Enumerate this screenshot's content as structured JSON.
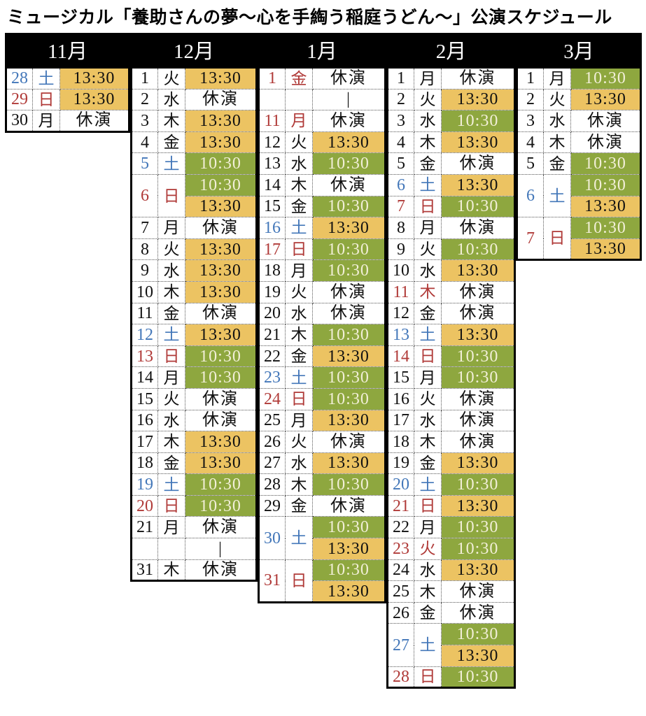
{
  "title": "ミュージカル「養助さんの夢〜心を手綯う稲庭うどん〜」公演スケジュール",
  "colors": {
    "morning_bg": "#8EA73F",
    "afternoon_bg": "#ECC362",
    "morning_text": "#F2EFD8",
    "saturday_text": "#4377B9",
    "sunday_holiday_text": "#B03A38",
    "header_bg": "#000000"
  },
  "labels": {
    "no_show": "休演",
    "continuation_mark": "|",
    "morning_time": "10:30",
    "afternoon_time": "13:30"
  },
  "months": [
    {
      "name": "11月",
      "rows": [
        {
          "date": "28",
          "day": "土",
          "type": "saturday",
          "shows": [
            {
              "time": "13:30",
              "kind": "afternoon"
            }
          ]
        },
        {
          "date": "29",
          "day": "日",
          "type": "sunday",
          "shows": [
            {
              "time": "13:30",
              "kind": "afternoon"
            }
          ]
        },
        {
          "date": "30",
          "day": "月",
          "type": "weekday",
          "shows": [
            {
              "time": "休演",
              "kind": "off"
            }
          ]
        }
      ]
    },
    {
      "name": "12月",
      "rows": [
        {
          "date": "1",
          "day": "火",
          "type": "weekday",
          "shows": [
            {
              "time": "13:30",
              "kind": "afternoon"
            }
          ]
        },
        {
          "date": "2",
          "day": "水",
          "type": "weekday",
          "shows": [
            {
              "time": "休演",
              "kind": "off"
            }
          ]
        },
        {
          "date": "3",
          "day": "木",
          "type": "weekday",
          "shows": [
            {
              "time": "13:30",
              "kind": "afternoon"
            }
          ]
        },
        {
          "date": "4",
          "day": "金",
          "type": "weekday",
          "shows": [
            {
              "time": "13:30",
              "kind": "afternoon"
            }
          ]
        },
        {
          "date": "5",
          "day": "土",
          "type": "saturday",
          "shows": [
            {
              "time": "10:30",
              "kind": "morning"
            }
          ]
        },
        {
          "date": "6",
          "day": "日",
          "type": "sunday",
          "shows": [
            {
              "time": "10:30",
              "kind": "morning"
            },
            {
              "time": "13:30",
              "kind": "afternoon"
            }
          ]
        },
        {
          "date": "7",
          "day": "月",
          "type": "weekday",
          "shows": [
            {
              "time": "休演",
              "kind": "off"
            }
          ]
        },
        {
          "date": "8",
          "day": "火",
          "type": "weekday",
          "shows": [
            {
              "time": "13:30",
              "kind": "afternoon"
            }
          ]
        },
        {
          "date": "9",
          "day": "水",
          "type": "weekday",
          "shows": [
            {
              "time": "13:30",
              "kind": "afternoon"
            }
          ]
        },
        {
          "date": "10",
          "day": "木",
          "type": "weekday",
          "shows": [
            {
              "time": "13:30",
              "kind": "afternoon"
            }
          ]
        },
        {
          "date": "11",
          "day": "金",
          "type": "weekday",
          "shows": [
            {
              "time": "休演",
              "kind": "off"
            }
          ]
        },
        {
          "date": "12",
          "day": "土",
          "type": "saturday",
          "shows": [
            {
              "time": "13:30",
              "kind": "afternoon"
            }
          ]
        },
        {
          "date": "13",
          "day": "日",
          "type": "sunday",
          "shows": [
            {
              "time": "10:30",
              "kind": "morning"
            }
          ]
        },
        {
          "date": "14",
          "day": "月",
          "type": "weekday",
          "shows": [
            {
              "time": "10:30",
              "kind": "morning"
            }
          ]
        },
        {
          "date": "15",
          "day": "火",
          "type": "weekday",
          "shows": [
            {
              "time": "休演",
              "kind": "off"
            }
          ]
        },
        {
          "date": "16",
          "day": "水",
          "type": "weekday",
          "shows": [
            {
              "time": "休演",
              "kind": "off"
            }
          ]
        },
        {
          "date": "17",
          "day": "木",
          "type": "weekday",
          "shows": [
            {
              "time": "13:30",
              "kind": "afternoon"
            }
          ]
        },
        {
          "date": "18",
          "day": "金",
          "type": "weekday",
          "shows": [
            {
              "time": "13:30",
              "kind": "afternoon"
            }
          ]
        },
        {
          "date": "19",
          "day": "土",
          "type": "saturday",
          "shows": [
            {
              "time": "10:30",
              "kind": "morning"
            }
          ]
        },
        {
          "date": "20",
          "day": "日",
          "type": "sunday",
          "shows": [
            {
              "time": "10:30",
              "kind": "morning"
            }
          ]
        },
        {
          "date": "21",
          "day": "月",
          "type": "weekday",
          "shows": [
            {
              "time": "休演",
              "kind": "off"
            }
          ]
        },
        {
          "date": "",
          "day": "",
          "type": "ellipsis",
          "shows": [
            {
              "time": "|",
              "kind": "ellipsis"
            }
          ]
        },
        {
          "date": "31",
          "day": "木",
          "type": "weekday",
          "shows": [
            {
              "time": "休演",
              "kind": "off"
            }
          ]
        }
      ]
    },
    {
      "name": "1月",
      "rows": [
        {
          "date": "1",
          "day": "金",
          "type": "holiday",
          "shows": [
            {
              "time": "休演",
              "kind": "off"
            }
          ]
        },
        {
          "date": "",
          "day": "",
          "type": "ellipsis",
          "shows": [
            {
              "time": "|",
              "kind": "ellipsis"
            }
          ]
        },
        {
          "date": "11",
          "day": "月",
          "type": "holiday",
          "shows": [
            {
              "time": "休演",
              "kind": "off"
            }
          ]
        },
        {
          "date": "12",
          "day": "火",
          "type": "weekday",
          "shows": [
            {
              "time": "13:30",
              "kind": "afternoon"
            }
          ]
        },
        {
          "date": "13",
          "day": "水",
          "type": "weekday",
          "shows": [
            {
              "time": "10:30",
              "kind": "morning"
            }
          ]
        },
        {
          "date": "14",
          "day": "木",
          "type": "weekday",
          "shows": [
            {
              "time": "休演",
              "kind": "off"
            }
          ]
        },
        {
          "date": "15",
          "day": "金",
          "type": "weekday",
          "shows": [
            {
              "time": "10:30",
              "kind": "morning"
            }
          ]
        },
        {
          "date": "16",
          "day": "土",
          "type": "saturday",
          "shows": [
            {
              "time": "13:30",
              "kind": "afternoon"
            }
          ]
        },
        {
          "date": "17",
          "day": "日",
          "type": "sunday",
          "shows": [
            {
              "time": "10:30",
              "kind": "morning"
            }
          ]
        },
        {
          "date": "18",
          "day": "月",
          "type": "weekday",
          "shows": [
            {
              "time": "10:30",
              "kind": "morning"
            }
          ]
        },
        {
          "date": "19",
          "day": "火",
          "type": "weekday",
          "shows": [
            {
              "time": "休演",
              "kind": "off"
            }
          ]
        },
        {
          "date": "20",
          "day": "水",
          "type": "weekday",
          "shows": [
            {
              "time": "休演",
              "kind": "off"
            }
          ]
        },
        {
          "date": "21",
          "day": "木",
          "type": "weekday",
          "shows": [
            {
              "time": "10:30",
              "kind": "morning"
            }
          ]
        },
        {
          "date": "22",
          "day": "金",
          "type": "weekday",
          "shows": [
            {
              "time": "13:30",
              "kind": "afternoon"
            }
          ]
        },
        {
          "date": "23",
          "day": "土",
          "type": "saturday",
          "shows": [
            {
              "time": "10:30",
              "kind": "morning"
            }
          ]
        },
        {
          "date": "24",
          "day": "日",
          "type": "sunday",
          "shows": [
            {
              "time": "10:30",
              "kind": "morning"
            }
          ]
        },
        {
          "date": "25",
          "day": "月",
          "type": "weekday",
          "shows": [
            {
              "time": "13:30",
              "kind": "afternoon"
            }
          ]
        },
        {
          "date": "26",
          "day": "火",
          "type": "weekday",
          "shows": [
            {
              "time": "休演",
              "kind": "off"
            }
          ]
        },
        {
          "date": "27",
          "day": "水",
          "type": "weekday",
          "shows": [
            {
              "time": "13:30",
              "kind": "afternoon"
            }
          ]
        },
        {
          "date": "28",
          "day": "木",
          "type": "weekday",
          "shows": [
            {
              "time": "10:30",
              "kind": "morning"
            }
          ]
        },
        {
          "date": "29",
          "day": "金",
          "type": "weekday",
          "shows": [
            {
              "time": "休演",
              "kind": "off"
            }
          ]
        },
        {
          "date": "30",
          "day": "土",
          "type": "saturday",
          "shows": [
            {
              "time": "10:30",
              "kind": "morning"
            },
            {
              "time": "13:30",
              "kind": "afternoon"
            }
          ]
        },
        {
          "date": "31",
          "day": "日",
          "type": "sunday",
          "shows": [
            {
              "time": "10:30",
              "kind": "morning"
            },
            {
              "time": "13:30",
              "kind": "afternoon"
            }
          ]
        }
      ]
    },
    {
      "name": "2月",
      "rows": [
        {
          "date": "1",
          "day": "月",
          "type": "weekday",
          "shows": [
            {
              "time": "休演",
              "kind": "off"
            }
          ]
        },
        {
          "date": "2",
          "day": "火",
          "type": "weekday",
          "shows": [
            {
              "time": "13:30",
              "kind": "afternoon"
            }
          ]
        },
        {
          "date": "3",
          "day": "水",
          "type": "weekday",
          "shows": [
            {
              "time": "10:30",
              "kind": "morning"
            }
          ]
        },
        {
          "date": "4",
          "day": "木",
          "type": "weekday",
          "shows": [
            {
              "time": "13:30",
              "kind": "afternoon"
            }
          ]
        },
        {
          "date": "5",
          "day": "金",
          "type": "weekday",
          "shows": [
            {
              "time": "休演",
              "kind": "off"
            }
          ]
        },
        {
          "date": "6",
          "day": "土",
          "type": "saturday",
          "shows": [
            {
              "time": "13:30",
              "kind": "afternoon"
            }
          ]
        },
        {
          "date": "7",
          "day": "日",
          "type": "sunday",
          "shows": [
            {
              "time": "10:30",
              "kind": "morning"
            }
          ]
        },
        {
          "date": "8",
          "day": "月",
          "type": "weekday",
          "shows": [
            {
              "time": "休演",
              "kind": "off"
            }
          ]
        },
        {
          "date": "9",
          "day": "火",
          "type": "weekday",
          "shows": [
            {
              "time": "10:30",
              "kind": "morning"
            }
          ]
        },
        {
          "date": "10",
          "day": "水",
          "type": "weekday",
          "shows": [
            {
              "time": "13:30",
              "kind": "afternoon"
            }
          ]
        },
        {
          "date": "11",
          "day": "木",
          "type": "holiday",
          "shows": [
            {
              "time": "休演",
              "kind": "off"
            }
          ]
        },
        {
          "date": "12",
          "day": "金",
          "type": "weekday",
          "shows": [
            {
              "time": "休演",
              "kind": "off"
            }
          ]
        },
        {
          "date": "13",
          "day": "土",
          "type": "saturday",
          "shows": [
            {
              "time": "13:30",
              "kind": "afternoon"
            }
          ]
        },
        {
          "date": "14",
          "day": "日",
          "type": "sunday",
          "shows": [
            {
              "time": "10:30",
              "kind": "morning"
            }
          ]
        },
        {
          "date": "15",
          "day": "月",
          "type": "weekday",
          "shows": [
            {
              "time": "10:30",
              "kind": "morning"
            }
          ]
        },
        {
          "date": "16",
          "day": "火",
          "type": "weekday",
          "shows": [
            {
              "time": "休演",
              "kind": "off"
            }
          ]
        },
        {
          "date": "17",
          "day": "水",
          "type": "weekday",
          "shows": [
            {
              "time": "休演",
              "kind": "off"
            }
          ]
        },
        {
          "date": "18",
          "day": "木",
          "type": "weekday",
          "shows": [
            {
              "time": "休演",
              "kind": "off"
            }
          ]
        },
        {
          "date": "19",
          "day": "金",
          "type": "weekday",
          "shows": [
            {
              "time": "13:30",
              "kind": "afternoon"
            }
          ]
        },
        {
          "date": "20",
          "day": "土",
          "type": "saturday",
          "shows": [
            {
              "time": "10:30",
              "kind": "morning"
            }
          ]
        },
        {
          "date": "21",
          "day": "日",
          "type": "sunday",
          "shows": [
            {
              "time": "13:30",
              "kind": "afternoon"
            }
          ]
        },
        {
          "date": "22",
          "day": "月",
          "type": "weekday",
          "shows": [
            {
              "time": "10:30",
              "kind": "morning"
            }
          ]
        },
        {
          "date": "23",
          "day": "火",
          "type": "holiday",
          "shows": [
            {
              "time": "10:30",
              "kind": "morning"
            }
          ]
        },
        {
          "date": "24",
          "day": "水",
          "type": "weekday",
          "shows": [
            {
              "time": "13:30",
              "kind": "afternoon"
            }
          ]
        },
        {
          "date": "25",
          "day": "木",
          "type": "weekday",
          "shows": [
            {
              "time": "休演",
              "kind": "off"
            }
          ]
        },
        {
          "date": "26",
          "day": "金",
          "type": "weekday",
          "shows": [
            {
              "time": "休演",
              "kind": "off"
            }
          ]
        },
        {
          "date": "27",
          "day": "土",
          "type": "saturday",
          "shows": [
            {
              "time": "10:30",
              "kind": "morning"
            },
            {
              "time": "13:30",
              "kind": "afternoon"
            }
          ]
        },
        {
          "date": "28",
          "day": "日",
          "type": "sunday",
          "shows": [
            {
              "time": "10:30",
              "kind": "morning"
            }
          ]
        }
      ]
    },
    {
      "name": "3月",
      "rows": [
        {
          "date": "1",
          "day": "月",
          "type": "weekday",
          "shows": [
            {
              "time": "10:30",
              "kind": "morning"
            }
          ]
        },
        {
          "date": "2",
          "day": "火",
          "type": "weekday",
          "shows": [
            {
              "time": "13:30",
              "kind": "afternoon"
            }
          ]
        },
        {
          "date": "3",
          "day": "水",
          "type": "weekday",
          "shows": [
            {
              "time": "休演",
              "kind": "off"
            }
          ]
        },
        {
          "date": "4",
          "day": "木",
          "type": "weekday",
          "shows": [
            {
              "time": "休演",
              "kind": "off"
            }
          ]
        },
        {
          "date": "5",
          "day": "金",
          "type": "weekday",
          "shows": [
            {
              "time": "10:30",
              "kind": "morning"
            }
          ]
        },
        {
          "date": "6",
          "day": "土",
          "type": "saturday",
          "shows": [
            {
              "time": "10:30",
              "kind": "morning"
            },
            {
              "time": "13:30",
              "kind": "afternoon"
            }
          ]
        },
        {
          "date": "7",
          "day": "日",
          "type": "sunday",
          "shows": [
            {
              "time": "10:30",
              "kind": "morning"
            },
            {
              "time": "13:30",
              "kind": "afternoon"
            }
          ]
        }
      ]
    }
  ]
}
